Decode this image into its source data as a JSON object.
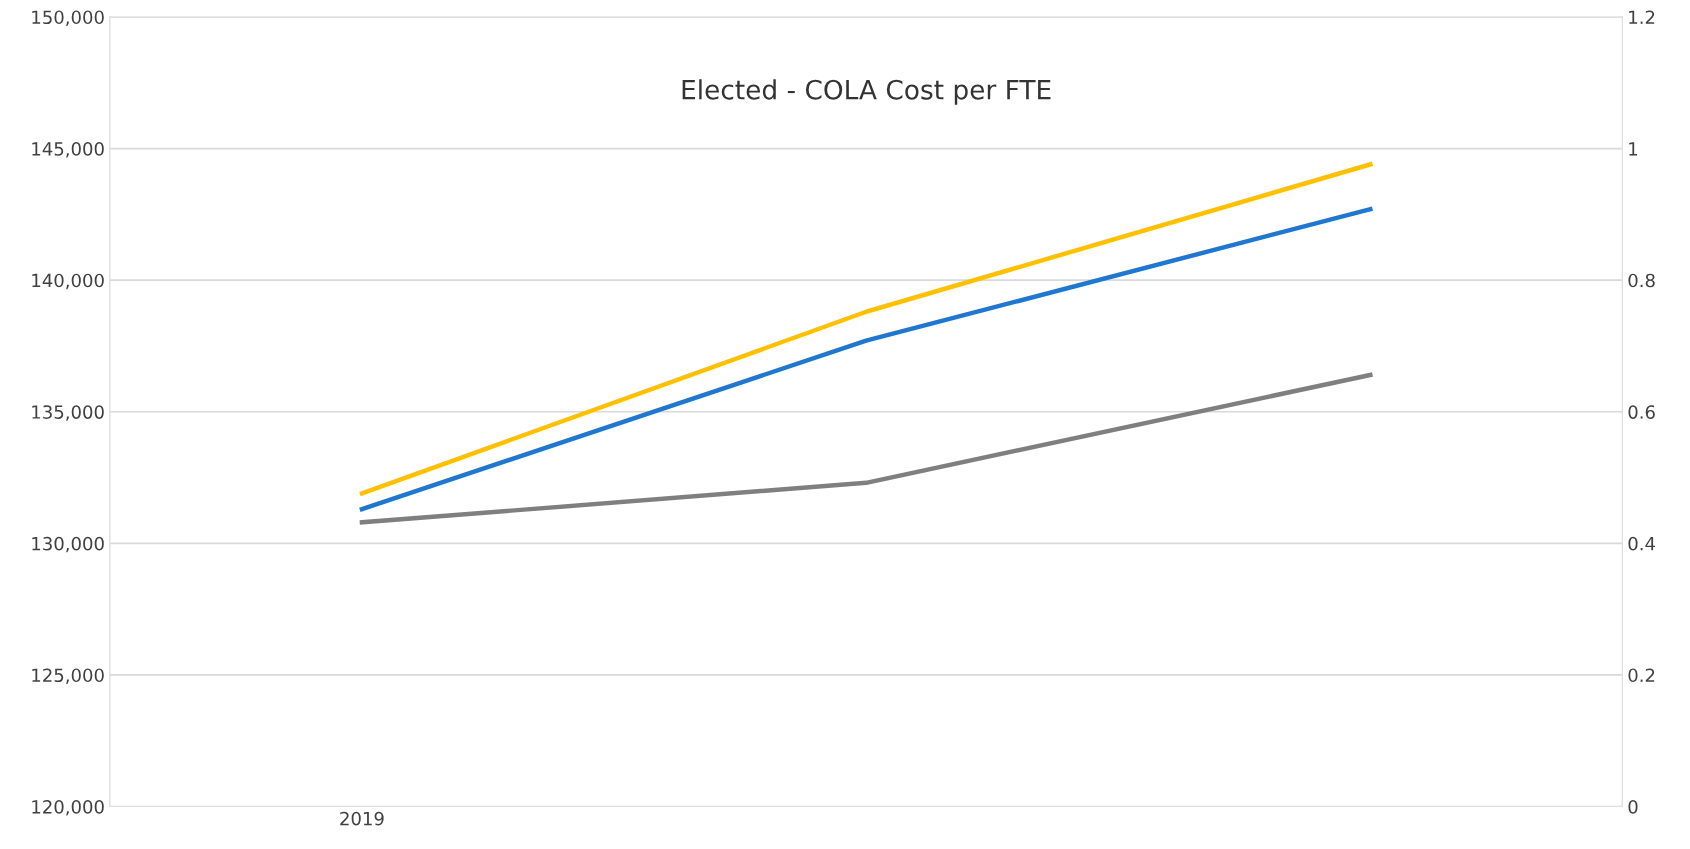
{
  "chart_data": {
    "type": "line",
    "title": "Elected - COLA Cost per FTE",
    "categories": [
      "2019",
      null,
      null
    ],
    "series": [
      {
        "color": "#ffc000",
        "values": [
          131900,
          138800,
          144400
        ]
      },
      {
        "color": "#1f77d0",
        "values": [
          131300,
          137700,
          142700
        ]
      },
      {
        "color": "#7f7f7f",
        "values": [
          130800,
          132300,
          136400
        ]
      }
    ],
    "ylim": [
      120000,
      150000
    ],
    "yticks": [
      {
        "value": 120000,
        "label": "120,000"
      },
      {
        "value": 125000,
        "label": "125,000"
      },
      {
        "value": 130000,
        "label": "130,000"
      },
      {
        "value": 135000,
        "label": "135,000"
      },
      {
        "value": 140000,
        "label": "140,000"
      },
      {
        "value": 145000,
        "label": "145,000"
      },
      {
        "value": 150000,
        "label": "150,000"
      }
    ],
    "y2lim": [
      0,
      1.2
    ],
    "y2ticks": [
      0,
      0.2,
      0.4,
      0.6,
      0.8,
      1,
      1.2
    ],
    "grid": "y",
    "marker": "none",
    "line_style": "solid"
  }
}
